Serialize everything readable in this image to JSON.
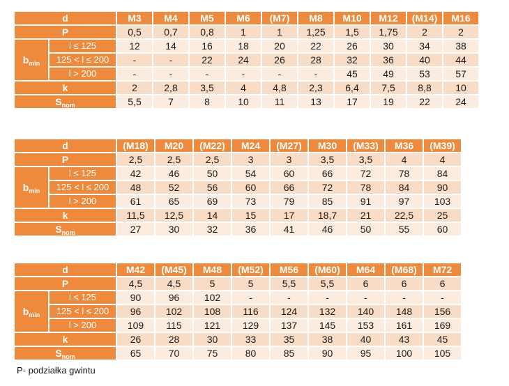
{
  "labels": {
    "d": "d",
    "p": "P",
    "b": "b",
    "b_sub": "min",
    "k": "k",
    "s": "S",
    "s_sub": "nom",
    "r1": "l ≤ 125",
    "r2": "125 < l ≤ 200",
    "r3": "l > 200"
  },
  "tables": [
    {
      "d": [
        "M3",
        "M4",
        "M5",
        "M6",
        "(M7)",
        "M8",
        "M10",
        "M12",
        "(M14)",
        "M16"
      ],
      "p": [
        "0,5",
        "0,7",
        "0,8",
        "1",
        "1",
        "1,25",
        "1,5",
        "1,75",
        "2",
        "2"
      ],
      "b1": [
        "12",
        "14",
        "16",
        "18",
        "20",
        "22",
        "26",
        "30",
        "34",
        "38"
      ],
      "b2": [
        "-",
        "-",
        "22",
        "24",
        "26",
        "28",
        "32",
        "36",
        "40",
        "44"
      ],
      "b3": [
        "-",
        "-",
        "-",
        "-",
        "-",
        "-",
        "45",
        "49",
        "53",
        "57"
      ],
      "k": [
        "2",
        "2,8",
        "3,5",
        "4",
        "4,8",
        "2,3",
        "6,4",
        "7,5",
        "8,8",
        "10"
      ],
      "s": [
        "5,5",
        "7",
        "8",
        "10",
        "11",
        "13",
        "17",
        "19",
        "22",
        "24"
      ]
    },
    {
      "d": [
        "(M18)",
        "M20",
        "(M22)",
        "M24",
        "(M27)",
        "M30",
        "(M33)",
        "M36",
        "(M39)"
      ],
      "p": [
        "2,5",
        "2,5",
        "2,5",
        "3",
        "3",
        "3,5",
        "3,5",
        "4",
        "4"
      ],
      "b1": [
        "42",
        "46",
        "50",
        "54",
        "60",
        "66",
        "72",
        "78",
        "84"
      ],
      "b2": [
        "48",
        "52",
        "56",
        "60",
        "66",
        "72",
        "78",
        "84",
        "90"
      ],
      "b3": [
        "61",
        "65",
        "69",
        "73",
        "79",
        "85",
        "91",
        "97",
        "103"
      ],
      "k": [
        "11,5",
        "12,5",
        "14",
        "15",
        "17",
        "18,7",
        "21",
        "22,5",
        "25"
      ],
      "s": [
        "27",
        "30",
        "32",
        "36",
        "41",
        "46",
        "50",
        "55",
        "60"
      ]
    },
    {
      "d": [
        "M42",
        "(M45)",
        "M48",
        "(M52)",
        "M56",
        "(M60)",
        "M64",
        "(M68)",
        "M72"
      ],
      "p": [
        "4,5",
        "4,5",
        "5",
        "5",
        "5,5",
        "5,5",
        "6",
        "6",
        "6"
      ],
      "b1": [
        "90",
        "96",
        "102",
        "-",
        "-",
        "-",
        "-",
        "-",
        "-"
      ],
      "b2": [
        "96",
        "102",
        "108",
        "116",
        "124",
        "132",
        "140",
        "148",
        "156"
      ],
      "b3": [
        "109",
        "115",
        "121",
        "129",
        "137",
        "145",
        "153",
        "161",
        "169"
      ],
      "k": [
        "26",
        "28",
        "30",
        "33",
        "35",
        "38",
        "40",
        "43",
        "45"
      ],
      "s": [
        "65",
        "70",
        "75",
        "80",
        "85",
        "90",
        "95",
        "100",
        "105"
      ]
    }
  ],
  "footnote": "P- podziałka gwintu",
  "colors": {
    "header": "#ef8a3c",
    "row_dark": "#f9dcc6",
    "row_light": "#fcece0"
  }
}
